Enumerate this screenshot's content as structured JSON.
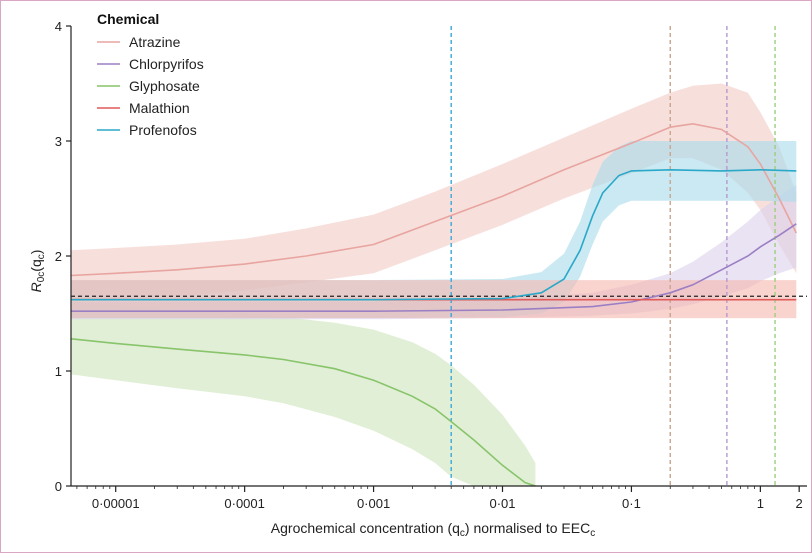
{
  "chart_data": {
    "type": "line",
    "x_scale": "log",
    "xlim": [
      4.5e-06,
      2.3
    ],
    "ylim": [
      0,
      4
    ],
    "x_ticks": [
      {
        "value": 1e-05,
        "label": "0·00001"
      },
      {
        "value": 0.0001,
        "label": "0·0001"
      },
      {
        "value": 0.001,
        "label": "0·001"
      },
      {
        "value": 0.01,
        "label": "0·01"
      },
      {
        "value": 0.1,
        "label": "0·1"
      },
      {
        "value": 1,
        "label": "1"
      },
      {
        "value": 2,
        "label": "2"
      }
    ],
    "y_ticks": [
      {
        "value": 0,
        "label": "0"
      },
      {
        "value": 1,
        "label": "1"
      },
      {
        "value": 2,
        "label": "2"
      },
      {
        "value": 3,
        "label": "3"
      },
      {
        "value": 4,
        "label": "4"
      }
    ],
    "xlabel": {
      "pre": "Agrochemical concentration (q",
      "sub": "c",
      "mid": ") normalised to EEC",
      "sub2": "c"
    },
    "ylabel": {
      "r": "R",
      "r_sub": "0c",
      "open": "(q",
      "q_sub": "c",
      "close": ")"
    },
    "legend": {
      "title": "Chemical",
      "placement": "top-left"
    },
    "reference_line": {
      "y": 1.65,
      "style": "dashed",
      "color": "#222222"
    },
    "series": [
      {
        "name": "Atrazine",
        "color": "#e8a5a0",
        "band_color": "#f2cbc6",
        "x": [
          4.5e-06,
          1e-05,
          3e-05,
          0.0001,
          0.0003,
          0.001,
          0.003,
          0.01,
          0.03,
          0.1,
          0.2,
          0.3,
          0.5,
          0.8,
          1,
          1.4,
          1.9
        ],
        "y": [
          1.83,
          1.85,
          1.88,
          1.93,
          2.0,
          2.1,
          2.3,
          2.52,
          2.75,
          2.98,
          3.12,
          3.15,
          3.1,
          2.95,
          2.8,
          2.5,
          2.2
        ],
        "lower": [
          1.62,
          1.63,
          1.65,
          1.7,
          1.77,
          1.85,
          2.05,
          2.27,
          2.5,
          2.72,
          2.85,
          2.85,
          2.75,
          2.55,
          2.4,
          2.1,
          1.85
        ],
        "upper": [
          2.05,
          2.07,
          2.1,
          2.15,
          2.24,
          2.36,
          2.56,
          2.8,
          3.03,
          3.28,
          3.42,
          3.48,
          3.5,
          3.42,
          3.25,
          2.95,
          2.55
        ],
        "vline_x": 0.2,
        "vline_color": "#c9a48f"
      },
      {
        "name": "Chlorpyrifos",
        "color": "#9b7fc4",
        "band_color": "#dcd2ec",
        "x": [
          4.5e-06,
          0.001,
          0.01,
          0.05,
          0.1,
          0.2,
          0.3,
          0.5,
          0.8,
          1,
          1.4,
          1.9
        ],
        "y": [
          1.52,
          1.52,
          1.53,
          1.56,
          1.6,
          1.68,
          1.75,
          1.88,
          2.0,
          2.08,
          2.18,
          2.28
        ],
        "lower": [
          1.45,
          1.45,
          1.46,
          1.48,
          1.5,
          1.54,
          1.58,
          1.65,
          1.72,
          1.78,
          1.85,
          1.9
        ],
        "upper": [
          1.6,
          1.6,
          1.62,
          1.68,
          1.75,
          1.85,
          1.95,
          2.12,
          2.3,
          2.4,
          2.52,
          2.62
        ],
        "vline_x": 0.55,
        "vline_color": "#b59ad0"
      },
      {
        "name": "Glyphosate",
        "color": "#88c46a",
        "band_color": "#cfe5be",
        "x": [
          4.5e-06,
          1e-05,
          3e-05,
          0.0001,
          0.0002,
          0.0005,
          0.001,
          0.002,
          0.003,
          0.004,
          0.006,
          0.01,
          0.015,
          0.018
        ],
        "y": [
          1.28,
          1.24,
          1.19,
          1.14,
          1.1,
          1.02,
          0.92,
          0.78,
          0.67,
          0.56,
          0.4,
          0.18,
          0.03,
          0.0
        ],
        "lower": [
          0.97,
          0.92,
          0.85,
          0.78,
          0.72,
          0.6,
          0.48,
          0.32,
          0.2,
          0.08,
          0.0,
          0.0,
          0.0,
          0.0
        ],
        "upper": [
          1.6,
          1.57,
          1.53,
          1.5,
          1.47,
          1.42,
          1.36,
          1.25,
          1.15,
          1.05,
          0.88,
          0.62,
          0.35,
          0.2
        ],
        "vline_x": 1.3,
        "vline_color": "#9ccf7e"
      },
      {
        "name": "Malathion",
        "color": "#e05a5a",
        "band_color": "#f5b8b0",
        "x": [
          4.5e-06,
          0.001,
          0.01,
          0.1,
          0.3,
          1,
          1.9
        ],
        "y": [
          1.62,
          1.62,
          1.62,
          1.62,
          1.62,
          1.62,
          1.62
        ],
        "lower": [
          1.46,
          1.46,
          1.46,
          1.46,
          1.46,
          1.46,
          1.46
        ],
        "upper": [
          1.79,
          1.79,
          1.79,
          1.79,
          1.79,
          1.79,
          1.79
        ],
        "vline_x": null,
        "vline_color": null
      },
      {
        "name": "Profenofos",
        "color": "#2aa8c8",
        "band_color": "#a9dcec",
        "x": [
          4.5e-06,
          0.001,
          0.01,
          0.02,
          0.03,
          0.04,
          0.05,
          0.06,
          0.08,
          0.1,
          0.2,
          0.5,
          1,
          1.9
        ],
        "y": [
          1.62,
          1.62,
          1.63,
          1.68,
          1.8,
          2.05,
          2.35,
          2.55,
          2.7,
          2.74,
          2.75,
          2.74,
          2.75,
          2.74
        ],
        "lower": [
          1.46,
          1.46,
          1.47,
          1.5,
          1.6,
          1.82,
          2.1,
          2.3,
          2.44,
          2.48,
          2.48,
          2.48,
          2.48,
          2.47
        ],
        "upper": [
          1.79,
          1.79,
          1.8,
          1.86,
          2.02,
          2.3,
          2.62,
          2.82,
          2.95,
          3.0,
          3.0,
          3.0,
          3.0,
          3.0
        ],
        "vline_x": 0.004,
        "vline_color": "#3aa8d8"
      }
    ]
  }
}
